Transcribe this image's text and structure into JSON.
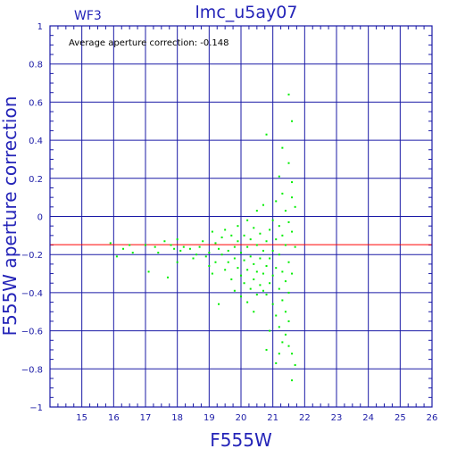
{
  "chart_data": {
    "type": "scatter",
    "title": "lmc_u5ay07",
    "panel_label": "WF3",
    "xlabel": "F555W",
    "ylabel": "F555W aperture correction",
    "annotation": "Average aperture correction: -0.148",
    "xlim": [
      14,
      26
    ],
    "ylim": [
      -1,
      1
    ],
    "xticks": [
      15,
      16,
      17,
      18,
      19,
      20,
      21,
      22,
      23,
      24,
      25,
      26
    ],
    "yticks": [
      -1,
      -0.8,
      -0.6,
      -0.4,
      -0.2,
      0,
      0.2,
      0.4,
      0.6,
      0.8,
      1
    ],
    "ytick_labels": [
      "−1",
      "−0.8",
      "−0.6",
      "−0.4",
      "−0.2",
      "0",
      "0.2",
      "0.4",
      "0.6",
      "0.8",
      "1"
    ],
    "grid": true,
    "average_line": {
      "y": -0.148,
      "color": "#ff0000"
    },
    "point_color": "#00ee00",
    "axis_color": "#1a1aa6",
    "points": [
      [
        15.9,
        -0.14
      ],
      [
        16.1,
        -0.21
      ],
      [
        16.3,
        -0.17
      ],
      [
        16.5,
        -0.15
      ],
      [
        16.6,
        -0.19
      ],
      [
        17.0,
        -0.15
      ],
      [
        17.1,
        -0.29
      ],
      [
        17.3,
        -0.16
      ],
      [
        17.4,
        -0.19
      ],
      [
        17.6,
        -0.13
      ],
      [
        17.7,
        -0.32
      ],
      [
        17.8,
        -0.15
      ],
      [
        17.9,
        -0.17
      ],
      [
        18.0,
        -0.12
      ],
      [
        18.0,
        -0.24
      ],
      [
        18.1,
        -0.18
      ],
      [
        18.2,
        -0.16
      ],
      [
        18.4,
        -0.17
      ],
      [
        18.5,
        -0.22
      ],
      [
        18.6,
        -0.2
      ],
      [
        18.7,
        -0.16
      ],
      [
        18.8,
        -0.13
      ],
      [
        18.9,
        -0.21
      ],
      [
        19.0,
        -0.19
      ],
      [
        19.0,
        -0.26
      ],
      [
        19.1,
        -0.08
      ],
      [
        19.1,
        -0.3
      ],
      [
        19.2,
        -0.14
      ],
      [
        19.2,
        -0.24
      ],
      [
        19.3,
        -0.17
      ],
      [
        19.3,
        -0.46
      ],
      [
        19.4,
        -0.2
      ],
      [
        19.4,
        -0.11
      ],
      [
        19.5,
        -0.28
      ],
      [
        19.5,
        -0.07
      ],
      [
        19.6,
        -0.18
      ],
      [
        19.6,
        -0.24
      ],
      [
        19.7,
        -0.1
      ],
      [
        19.7,
        -0.33
      ],
      [
        19.8,
        -0.16
      ],
      [
        19.8,
        -0.22
      ],
      [
        19.8,
        -0.39
      ],
      [
        19.9,
        -0.13
      ],
      [
        19.9,
        -0.27
      ],
      [
        19.9,
        -0.05
      ],
      [
        20.0,
        -0.19
      ],
      [
        20.0,
        -0.31
      ],
      [
        20.0,
        -0.42
      ],
      [
        20.1,
        -0.1
      ],
      [
        20.1,
        -0.23
      ],
      [
        20.1,
        -0.35
      ],
      [
        20.2,
        -0.02
      ],
      [
        20.2,
        -0.16
      ],
      [
        20.2,
        -0.28
      ],
      [
        20.2,
        -0.45
      ],
      [
        20.3,
        -0.12
      ],
      [
        20.3,
        -0.21
      ],
      [
        20.3,
        -0.38
      ],
      [
        20.4,
        -0.06
      ],
      [
        20.4,
        -0.25
      ],
      [
        20.4,
        -0.33
      ],
      [
        20.4,
        -0.5
      ],
      [
        20.5,
        0.03
      ],
      [
        20.5,
        -0.15
      ],
      [
        20.5,
        -0.29
      ],
      [
        20.5,
        -0.41
      ],
      [
        20.6,
        -0.09
      ],
      [
        20.6,
        -0.22
      ],
      [
        20.6,
        -0.36
      ],
      [
        20.7,
        0.06
      ],
      [
        20.7,
        -0.18
      ],
      [
        20.7,
        -0.3
      ],
      [
        20.7,
        -0.39
      ],
      [
        20.8,
        -0.13
      ],
      [
        20.8,
        -0.26
      ],
      [
        20.8,
        -0.41
      ],
      [
        20.8,
        -0.7
      ],
      [
        20.8,
        0.43
      ],
      [
        20.9,
        -0.07
      ],
      [
        20.9,
        -0.22
      ],
      [
        20.9,
        -0.35
      ],
      [
        20.9,
        -0.6
      ],
      [
        21.0,
        -0.02
      ],
      [
        21.0,
        -0.18
      ],
      [
        21.0,
        -0.31
      ],
      [
        21.0,
        -0.46
      ],
      [
        21.1,
        0.08
      ],
      [
        21.1,
        -0.12
      ],
      [
        21.1,
        -0.27
      ],
      [
        21.1,
        -0.52
      ],
      [
        21.1,
        -0.77
      ],
      [
        21.2,
        0.21
      ],
      [
        21.2,
        -0.05
      ],
      [
        21.2,
        -0.2
      ],
      [
        21.2,
        -0.38
      ],
      [
        21.2,
        -0.58
      ],
      [
        21.2,
        -0.72
      ],
      [
        21.3,
        0.12
      ],
      [
        21.3,
        -0.1
      ],
      [
        21.3,
        -0.29
      ],
      [
        21.3,
        -0.44
      ],
      [
        21.3,
        -0.66
      ],
      [
        21.3,
        0.36
      ],
      [
        21.4,
        0.03
      ],
      [
        21.4,
        -0.15
      ],
      [
        21.4,
        -0.34
      ],
      [
        21.4,
        -0.5
      ],
      [
        21.4,
        -0.62
      ],
      [
        21.5,
        0.28
      ],
      [
        21.5,
        0.64
      ],
      [
        21.5,
        -0.03
      ],
      [
        21.5,
        -0.24
      ],
      [
        21.5,
        -0.4
      ],
      [
        21.5,
        -0.55
      ],
      [
        21.5,
        -0.68
      ],
      [
        21.6,
        0.5
      ],
      [
        21.6,
        0.18
      ],
      [
        21.6,
        0.1
      ],
      [
        21.6,
        -0.08
      ],
      [
        21.6,
        -0.3
      ],
      [
        21.6,
        -0.72
      ],
      [
        21.6,
        -0.86
      ],
      [
        21.7,
        0.05
      ],
      [
        21.7,
        -0.16
      ],
      [
        21.7,
        -0.78
      ]
    ]
  }
}
